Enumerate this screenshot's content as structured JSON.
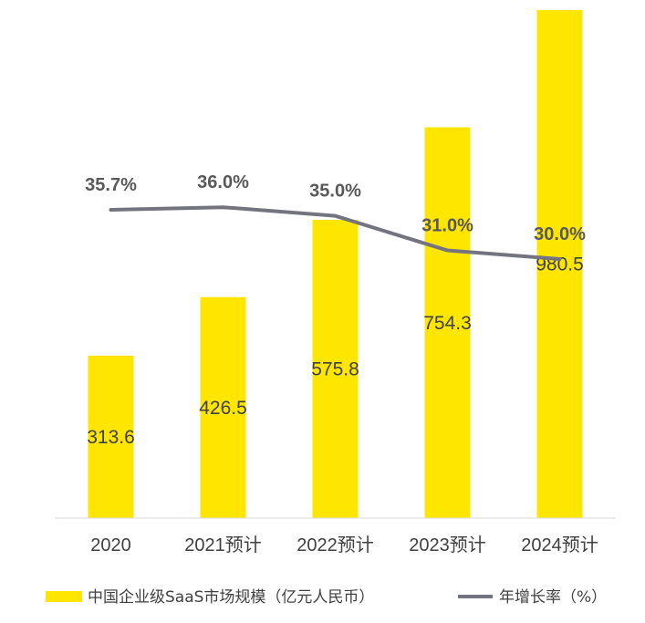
{
  "chart_data": {
    "type": "bar",
    "categories": [
      "2020",
      "2021预计",
      "2022预计",
      "2023预计",
      "2024预计"
    ],
    "series": [
      {
        "name": "中国企业级SaaS市场规模（亿元人民币）",
        "type": "bar",
        "axis": "primary",
        "color": "#FFE600",
        "values": [
          313.6,
          426.5,
          575.8,
          754.3,
          980.5
        ],
        "labels": [
          "313.6",
          "426.5",
          "575.8",
          "754.3",
          "980.5"
        ]
      },
      {
        "name": "年增长率（%）",
        "type": "line",
        "axis": "secondary",
        "color": "#747480",
        "values": [
          35.7,
          36.0,
          35.0,
          31.0,
          30.0
        ],
        "labels": [
          "35.7%",
          "36.0%",
          "35.0%",
          "31.0%",
          "30.0%"
        ]
      }
    ],
    "ylim": [
      0,
      1000
    ],
    "y2lim": [
      0,
      60
    ],
    "grid": false,
    "legend": "bottom"
  }
}
